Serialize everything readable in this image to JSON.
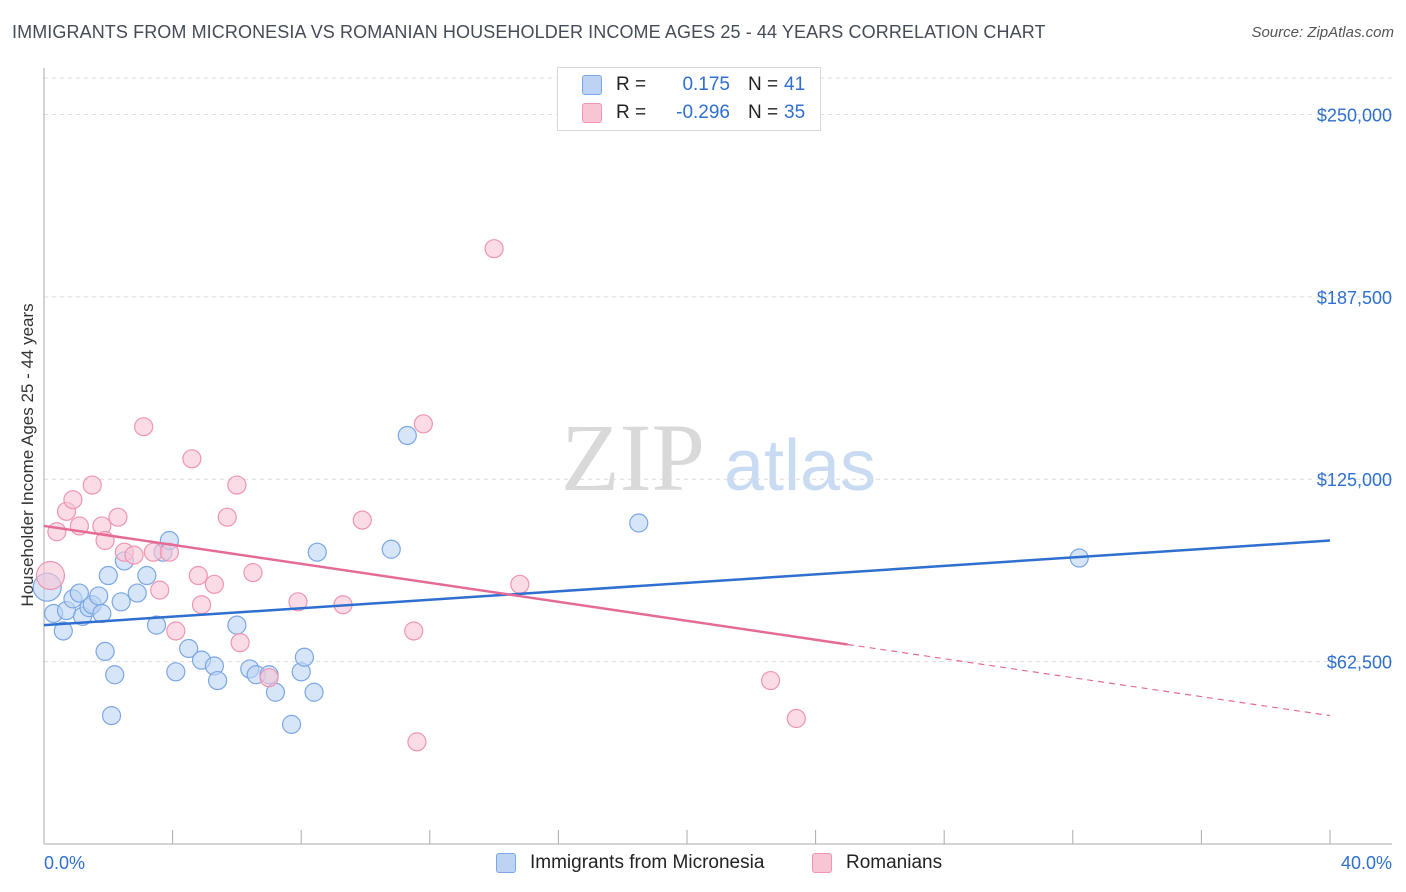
{
  "header": {
    "title": "IMMIGRANTS FROM MICRONESIA VS ROMANIAN HOUSEHOLDER INCOME AGES 25 - 44 YEARS CORRELATION CHART",
    "source": "Source: ZipAtlas.com"
  },
  "watermark": {
    "zip": "ZIP",
    "atlas": "atlas"
  },
  "legend": {
    "rows": [
      {
        "r_label": "R =",
        "r_value": "0.175",
        "n_label": "N =",
        "n_value": "41"
      },
      {
        "r_label": "R =",
        "r_value": "-0.296",
        "n_label": "N =",
        "n_value": "35"
      }
    ]
  },
  "bottom_legend": {
    "series1": "Immigrants from Micronesia",
    "series2": "Romanians"
  },
  "colors": {
    "blue_fill": "#bcd3f4",
    "blue_stroke": "#7aa7e6",
    "blue_line": "#2f6fd0",
    "pink_fill": "#f8c5d5",
    "pink_stroke": "#ef94b2",
    "pink_line": "#e56b97",
    "axis_text": "#2f6fd0",
    "grid": "#dcdcdc"
  },
  "chart_data": {
    "type": "scatter",
    "title": "IMMIGRANTS FROM MICRONESIA VS ROMANIAN HOUSEHOLDER INCOME AGES 25 - 44 YEARS CORRELATION CHART",
    "xlabel": "",
    "ylabel": "Householder Income Ages 25 - 44 years",
    "xlim": [
      0,
      40
    ],
    "ylim": [
      0,
      262500
    ],
    "x_tick_labels": [
      "0.0%",
      "40.0%"
    ],
    "y_ticks": [
      62500,
      125000,
      187500,
      250000
    ],
    "y_tick_labels": [
      "$62,500",
      "$125,000",
      "$187,500",
      "$250,000"
    ],
    "series": [
      {
        "name": "Immigrants from Micronesia",
        "r": 0.175,
        "n": 41,
        "trend": {
          "x": [
            0,
            40
          ],
          "y": [
            75000,
            104000
          ],
          "solid_until": 40
        },
        "points": [
          [
            0.1,
            88000
          ],
          [
            0.3,
            79000
          ],
          [
            0.6,
            73000
          ],
          [
            0.7,
            80000
          ],
          [
            0.9,
            84000
          ],
          [
            1.1,
            86000
          ],
          [
            1.2,
            78000
          ],
          [
            1.4,
            81000
          ],
          [
            1.5,
            82000
          ],
          [
            1.7,
            85000
          ],
          [
            1.8,
            79000
          ],
          [
            1.9,
            66000
          ],
          [
            2.0,
            92000
          ],
          [
            2.1,
            44000
          ],
          [
            2.2,
            58000
          ],
          [
            2.4,
            83000
          ],
          [
            2.5,
            97000
          ],
          [
            2.9,
            86000
          ],
          [
            3.2,
            92000
          ],
          [
            3.5,
            75000
          ],
          [
            3.7,
            100000
          ],
          [
            3.9,
            104000
          ],
          [
            4.1,
            59000
          ],
          [
            4.5,
            67000
          ],
          [
            4.9,
            63000
          ],
          [
            5.3,
            61000
          ],
          [
            5.4,
            56000
          ],
          [
            6.0,
            75000
          ],
          [
            6.4,
            60000
          ],
          [
            6.6,
            58000
          ],
          [
            7.0,
            58000
          ],
          [
            7.2,
            52000
          ],
          [
            7.7,
            41000
          ],
          [
            8.0,
            59000
          ],
          [
            8.1,
            64000
          ],
          [
            8.4,
            52000
          ],
          [
            8.5,
            100000
          ],
          [
            10.8,
            101000
          ],
          [
            11.3,
            140000
          ],
          [
            18.5,
            110000
          ],
          [
            32.2,
            98000
          ]
        ]
      },
      {
        "name": "Romanians",
        "r": -0.296,
        "n": 35,
        "trend": {
          "x": [
            0,
            40
          ],
          "y": [
            109000,
            44000
          ],
          "solid_until": 25
        },
        "points": [
          [
            0.2,
            92000
          ],
          [
            0.4,
            107000
          ],
          [
            0.7,
            114000
          ],
          [
            0.9,
            118000
          ],
          [
            1.1,
            109000
          ],
          [
            1.5,
            123000
          ],
          [
            1.8,
            109000
          ],
          [
            1.9,
            104000
          ],
          [
            2.3,
            112000
          ],
          [
            2.5,
            100000
          ],
          [
            2.8,
            99000
          ],
          [
            3.1,
            143000
          ],
          [
            3.4,
            100000
          ],
          [
            3.6,
            87000
          ],
          [
            3.9,
            100000
          ],
          [
            4.1,
            73000
          ],
          [
            4.6,
            132000
          ],
          [
            4.8,
            92000
          ],
          [
            4.9,
            82000
          ],
          [
            5.3,
            89000
          ],
          [
            5.7,
            112000
          ],
          [
            6.0,
            123000
          ],
          [
            6.1,
            69000
          ],
          [
            6.5,
            93000
          ],
          [
            7.0,
            57000
          ],
          [
            7.9,
            83000
          ],
          [
            9.3,
            82000
          ],
          [
            9.9,
            111000
          ],
          [
            11.5,
            73000
          ],
          [
            11.8,
            144000
          ],
          [
            11.6,
            35000
          ],
          [
            14.0,
            204000
          ],
          [
            14.8,
            89000
          ],
          [
            22.6,
            56000
          ],
          [
            23.4,
            43000
          ]
        ]
      }
    ]
  }
}
